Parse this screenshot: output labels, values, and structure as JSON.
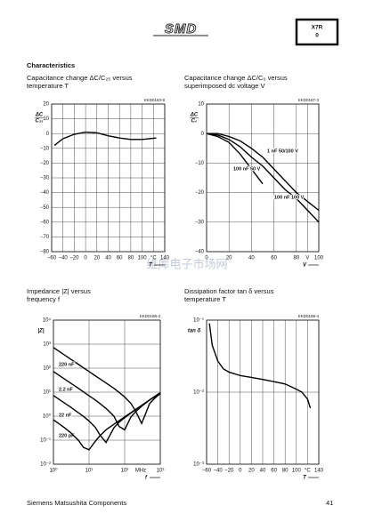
{
  "header": {
    "logo": "SMD",
    "badge": [
      "X7R",
      "0"
    ]
  },
  "section_title": "Characteristics",
  "watermark": "维库电子市场网",
  "footer": {
    "company": "Siemens Matsushita Components",
    "page": "41"
  },
  "chart_data": [
    {
      "type": "line",
      "title": "Capacitance change ΔC/C₂₅ versus temperature T",
      "code": "KKD0183-8",
      "y_label": [
        "ΔC",
        "C₂₅"
      ],
      "x_label": "T",
      "x": [
        -55,
        -40,
        -20,
        0,
        20,
        40,
        60,
        80,
        100,
        125
      ],
      "series": [
        {
          "color": "#000000",
          "values": [
            -8,
            -3.5,
            -0.5,
            1,
            0.5,
            -1.5,
            -3,
            -4,
            -4,
            -3
          ]
        }
      ],
      "xlim": [
        -60,
        140
      ],
      "xticks": [
        {
          "value": -60,
          "label": "−60"
        },
        {
          "value": -40,
          "label": "−40"
        },
        {
          "value": -20,
          "label": "−20"
        },
        0,
        20,
        40,
        60,
        80,
        100,
        {
          "value": 120,
          "label": "°C"
        },
        140
      ],
      "ylim": [
        -80,
        20
      ],
      "yticks": [
        20,
        10,
        0,
        {
          "value": -10,
          "label": "−10"
        },
        {
          "value": -20,
          "label": "−20"
        },
        {
          "value": -30,
          "label": "−30"
        },
        {
          "value": -40,
          "label": "−40"
        },
        {
          "value": -50,
          "label": "−50"
        },
        {
          "value": -60,
          "label": "−60"
        },
        {
          "value": -70,
          "label": "−70"
        },
        {
          "value": -80,
          "label": "−80"
        }
      ],
      "grid": true
    },
    {
      "type": "line",
      "title": "Capacitance change ΔC/C₀ versus superimposed dc voltage V",
      "code": "KKD0187-3",
      "y_label": [
        "ΔC",
        "C₀"
      ],
      "x_label": "V",
      "x": [
        0,
        10,
        20,
        30,
        40,
        50,
        60,
        70,
        80,
        90,
        100
      ],
      "series": [
        {
          "name": "1 nF 50/100 V",
          "color": "#000000",
          "values": [
            0,
            0,
            -1,
            -2.5,
            -5,
            -8,
            -12,
            -16,
            -20,
            -23,
            -26
          ]
        },
        {
          "name": "100 nF 50 V",
          "color": "#000000",
          "values": [
            0,
            -1,
            -3,
            -7,
            -12,
            -17,
            null,
            null,
            null,
            null,
            null
          ]
        },
        {
          "name": "100 nF 100 V",
          "color": "#000000",
          "values": [
            0,
            -0.5,
            -2,
            -4.5,
            -8,
            -11,
            -15,
            -19,
            -22,
            -26,
            -30
          ]
        }
      ],
      "xlim": [
        0,
        100
      ],
      "xticks": [
        0,
        20,
        40,
        60,
        80,
        {
          "value": 90,
          "label": "V"
        },
        100
      ],
      "ylim": [
        -40,
        10
      ],
      "yticks": [
        10,
        0,
        {
          "value": -10,
          "label": "−10"
        },
        {
          "value": -20,
          "label": "−20"
        },
        {
          "value": -30,
          "label": "−30"
        },
        {
          "value": -40,
          "label": "−40"
        }
      ],
      "grid": true
    },
    {
      "type": "line",
      "title": "Impedance |Z| versus frequency f",
      "code": "KKD0188-3",
      "y_label": [
        "|Z|"
      ],
      "x_label": "f",
      "x_unit": "MHz",
      "xlog": true,
      "ylog": true,
      "x": [
        1,
        2,
        3,
        5,
        7,
        10,
        15,
        20,
        30,
        50,
        70,
        100,
        150,
        200,
        300,
        500,
        700,
        1000
      ],
      "series": [
        {
          "name": "220 pF",
          "color": "#000000",
          "values": [
            723,
            362,
            241,
            145,
            103,
            72,
            48,
            36,
            24,
            14.4,
            9.7,
            6.3,
            3.4,
            1.7,
            0.5,
            3.3,
            5.6,
            8.7
          ]
        },
        {
          "name": "2.2 nF",
          "color": "#000000",
          "values": [
            72,
            36,
            24,
            14.5,
            10.3,
            7.1,
            4.7,
            3.4,
            2.1,
            1.0,
            0.37,
            0.27,
            0.93,
            1.5,
            2.6,
            4.7,
            6.6,
            9.4
          ]
        },
        {
          "name": "22 nF",
          "color": "#000000",
          "values": [
            7.2,
            3.6,
            2.4,
            1.4,
            0.97,
            0.63,
            0.34,
            0.17,
            0.08,
            0.33,
            0.56,
            0.87,
            1.36,
            1.85,
            2.8,
            4.7,
            6.6,
            9.4
          ]
        },
        {
          "name": "220 nF",
          "color": "#000000",
          "values": [
            0.71,
            0.34,
            0.21,
            0.1,
            0.05,
            0.04,
            0.09,
            0.15,
            0.27,
            0.46,
            0.65,
            0.93,
            1.4,
            1.9,
            2.8,
            4.7,
            6.6,
            9.4
          ]
        }
      ],
      "xlim": [
        1,
        1000
      ],
      "xticks": [
        {
          "value": 1,
          "label": "10⁰"
        },
        {
          "value": 10,
          "label": "10¹"
        },
        {
          "value": 100,
          "label": "10²"
        },
        {
          "value": 1000,
          "label": "10³"
        }
      ],
      "ylim": [
        0.01,
        10000
      ],
      "yticks": [
        {
          "value": 10000,
          "label": "10⁴"
        },
        {
          "value": 1000,
          "label": "10³"
        },
        {
          "value": 100,
          "label": "10²"
        },
        {
          "value": 10,
          "label": "10¹"
        },
        {
          "value": 1,
          "label": "10⁰"
        },
        {
          "value": 0.1,
          "label": "10⁻¹"
        },
        {
          "value": 0.01,
          "label": "10⁻²"
        }
      ],
      "grid": true
    },
    {
      "type": "line",
      "title": "Dissipation factor tan δ versus temperature T",
      "code": "KKD0189-4",
      "y_label": [
        "tan δ"
      ],
      "x_label": "T",
      "ylog": true,
      "x": [
        -55,
        -50,
        -40,
        -30,
        -20,
        0,
        20,
        40,
        60,
        80,
        100,
        110,
        120,
        125
      ],
      "series": [
        {
          "color": "#000000",
          "values": [
            0.09,
            0.045,
            0.027,
            0.021,
            0.019,
            0.017,
            0.016,
            0.015,
            0.014,
            0.013,
            0.011,
            0.01,
            0.008,
            0.006
          ]
        }
      ],
      "xlim": [
        -60,
        140
      ],
      "xticks": [
        {
          "value": -60,
          "label": "−60"
        },
        {
          "value": -40,
          "label": "−40"
        },
        {
          "value": -20,
          "label": "−20"
        },
        0,
        20,
        40,
        60,
        80,
        100,
        {
          "value": 120,
          "label": "°C"
        },
        140
      ],
      "ylim": [
        0.001,
        0.1
      ],
      "yticks": [
        {
          "value": 0.1,
          "label": "10⁻¹"
        },
        {
          "value": 0.01,
          "label": "10⁻²"
        },
        {
          "value": 0.001,
          "label": "10⁻³"
        }
      ],
      "grid": true
    }
  ]
}
